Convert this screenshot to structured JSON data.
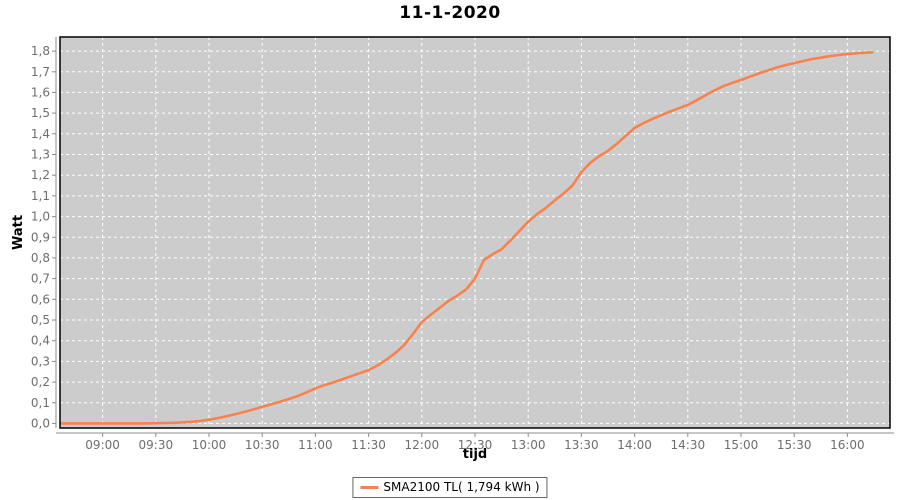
{
  "chart_data": {
    "type": "line",
    "title": "11-1-2020",
    "xlabel": "tijd",
    "ylabel": "Watt",
    "grid": "white dashed gridlines on gray plot background",
    "x_range": [
      "08:36",
      "16:24"
    ],
    "y_range": [
      -0.022,
      1.868
    ],
    "x_ticks": [
      "09:00",
      "09:30",
      "10:00",
      "10:30",
      "11:00",
      "11:30",
      "12:00",
      "12:30",
      "13:00",
      "13:30",
      "14:00",
      "14:30",
      "15:00",
      "15:30",
      "16:00"
    ],
    "y_ticks": [
      {
        "label": "0,0",
        "value": 0.0
      },
      {
        "label": "0,1",
        "value": 0.1
      },
      {
        "label": "0,2",
        "value": 0.2
      },
      {
        "label": "0,3",
        "value": 0.3
      },
      {
        "label": "0,4",
        "value": 0.4
      },
      {
        "label": "0,5",
        "value": 0.5
      },
      {
        "label": "0,6",
        "value": 0.6
      },
      {
        "label": "0,7",
        "value": 0.7
      },
      {
        "label": "0,8",
        "value": 0.8
      },
      {
        "label": "0,9",
        "value": 0.9
      },
      {
        "label": "1,0",
        "value": 1.0
      },
      {
        "label": "1,1",
        "value": 1.1
      },
      {
        "label": "1,2",
        "value": 1.2
      },
      {
        "label": "1,3",
        "value": 1.3
      },
      {
        "label": "1,4",
        "value": 1.4
      },
      {
        "label": "1,5",
        "value": 1.5
      },
      {
        "label": "1,6",
        "value": 1.6
      },
      {
        "label": "1,7",
        "value": 1.7
      },
      {
        "label": "1,8",
        "value": 1.8
      }
    ],
    "legend": {
      "position": "bottom-center",
      "entries": [
        {
          "label": "SMA2100 TL( 1,794 kWh )",
          "color": "#f8824e"
        }
      ]
    },
    "colors": {
      "plot_background": "#cccccc",
      "gridline": "#ffffff",
      "plot_border": "#000000",
      "axis_line": "#8c8c8c",
      "tick_label": "#6e6e6e",
      "title_text": "#000000"
    },
    "series": [
      {
        "name": "SMA2100 TL( 1,794 kWh )",
        "color": "#f8824e",
        "points": [
          [
            "08:37",
            0.0
          ],
          [
            "08:45",
            0.0
          ],
          [
            "08:50",
            0.0
          ],
          [
            "08:55",
            0.0
          ],
          [
            "09:00",
            0.0
          ],
          [
            "09:05",
            0.0
          ],
          [
            "09:10",
            0.0
          ],
          [
            "09:15",
            0.0
          ],
          [
            "09:20",
            0.0
          ],
          [
            "09:25",
            0.0
          ],
          [
            "09:30",
            0.001
          ],
          [
            "09:35",
            0.002
          ],
          [
            "09:40",
            0.003
          ],
          [
            "09:45",
            0.005
          ],
          [
            "09:50",
            0.008
          ],
          [
            "09:55",
            0.012
          ],
          [
            "10:00",
            0.018
          ],
          [
            "10:05",
            0.026
          ],
          [
            "10:10",
            0.035
          ],
          [
            "10:15",
            0.045
          ],
          [
            "10:20",
            0.056
          ],
          [
            "10:25",
            0.068
          ],
          [
            "10:30",
            0.08
          ],
          [
            "10:35",
            0.092
          ],
          [
            "10:40",
            0.105
          ],
          [
            "10:45",
            0.118
          ],
          [
            "10:50",
            0.132
          ],
          [
            "10:55",
            0.15
          ],
          [
            "11:00",
            0.17
          ],
          [
            "11:05",
            0.185
          ],
          [
            "11:10",
            0.198
          ],
          [
            "11:15",
            0.213
          ],
          [
            "11:20",
            0.228
          ],
          [
            "11:25",
            0.243
          ],
          [
            "11:30",
            0.258
          ],
          [
            "11:35",
            0.28
          ],
          [
            "11:40",
            0.308
          ],
          [
            "11:45",
            0.34
          ],
          [
            "11:50",
            0.378
          ],
          [
            "11:55",
            0.432
          ],
          [
            "12:00",
            0.49
          ],
          [
            "12:05",
            0.525
          ],
          [
            "12:10",
            0.558
          ],
          [
            "12:15",
            0.592
          ],
          [
            "12:20",
            0.618
          ],
          [
            "12:25",
            0.648
          ],
          [
            "12:30",
            0.7
          ],
          [
            "12:35",
            0.79
          ],
          [
            "12:40",
            0.818
          ],
          [
            "12:45",
            0.842
          ],
          [
            "12:50",
            0.885
          ],
          [
            "12:55",
            0.93
          ],
          [
            "13:00",
            0.975
          ],
          [
            "13:05",
            1.012
          ],
          [
            "13:10",
            1.042
          ],
          [
            "13:15",
            1.078
          ],
          [
            "13:20",
            1.112
          ],
          [
            "13:25",
            1.15
          ],
          [
            "13:30",
            1.215
          ],
          [
            "13:35",
            1.26
          ],
          [
            "13:40",
            1.292
          ],
          [
            "13:45",
            1.318
          ],
          [
            "13:50",
            1.352
          ],
          [
            "13:55",
            1.39
          ],
          [
            "14:00",
            1.428
          ],
          [
            "14:05",
            1.452
          ],
          [
            "14:10",
            1.472
          ],
          [
            "14:15",
            1.49
          ],
          [
            "14:20",
            1.508
          ],
          [
            "14:25",
            1.524
          ],
          [
            "14:30",
            1.54
          ],
          [
            "14:35",
            1.562
          ],
          [
            "14:40",
            1.586
          ],
          [
            "14:45",
            1.61
          ],
          [
            "14:50",
            1.63
          ],
          [
            "14:55",
            1.646
          ],
          [
            "15:00",
            1.66
          ],
          [
            "15:05",
            1.676
          ],
          [
            "15:10",
            1.692
          ],
          [
            "15:15",
            1.706
          ],
          [
            "15:20",
            1.72
          ],
          [
            "15:25",
            1.732
          ],
          [
            "15:30",
            1.742
          ],
          [
            "15:35",
            1.752
          ],
          [
            "15:40",
            1.761
          ],
          [
            "15:45",
            1.768
          ],
          [
            "15:50",
            1.775
          ],
          [
            "15:55",
            1.781
          ],
          [
            "16:00",
            1.786
          ],
          [
            "16:05",
            1.789
          ],
          [
            "16:10",
            1.792
          ],
          [
            "16:14",
            1.794
          ]
        ]
      }
    ]
  }
}
